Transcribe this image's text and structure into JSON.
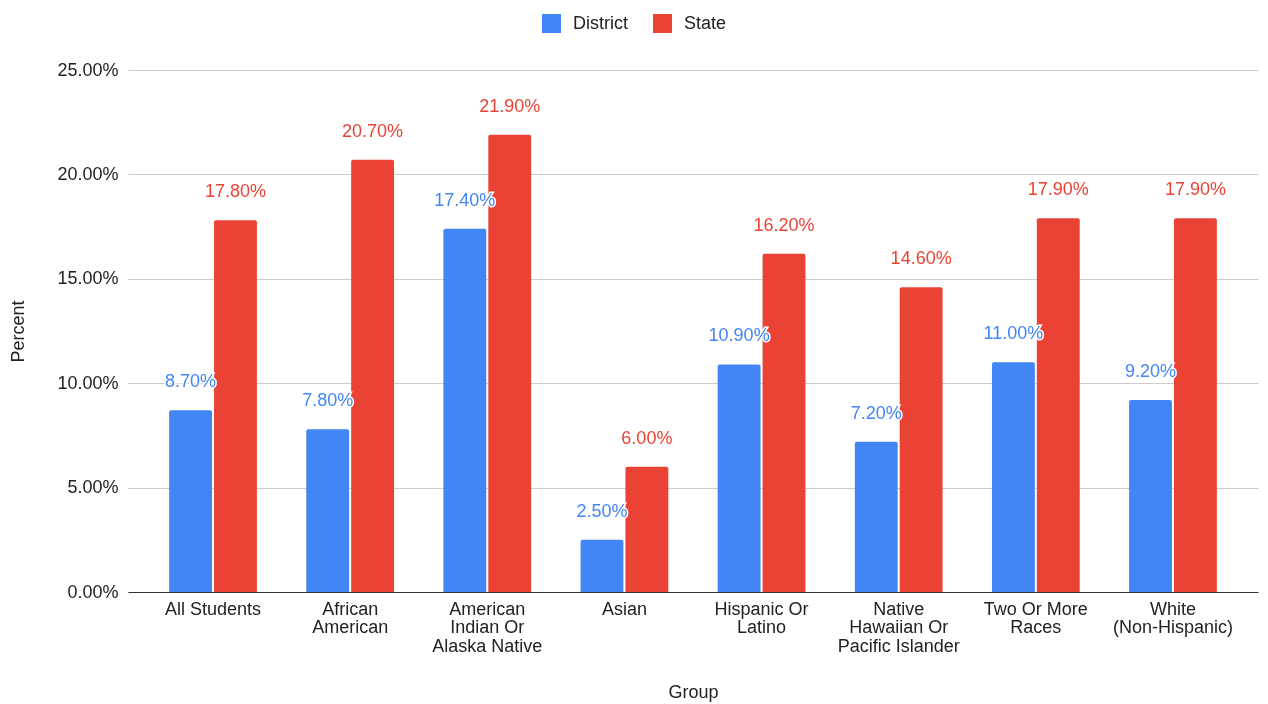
{
  "chart_data": {
    "type": "bar",
    "xlabel": "Group",
    "ylabel": "Percent",
    "categories": [
      "All Students",
      "African American",
      "American Indian Or Alaska Native",
      "Asian",
      "Hispanic Or Latino",
      "Native Hawaiian Or Pacific Islander",
      "Two Or More Races",
      "White (Non-Hispanic)"
    ],
    "series": [
      {
        "name": "District",
        "color": "#4285f4",
        "values": [
          8.7,
          7.8,
          17.4,
          2.5,
          10.9,
          7.2,
          11.0,
          9.2
        ],
        "value_labels": [
          "8.70%",
          "7.80%",
          "17.40%",
          "2.50%",
          "10.90%",
          "7.20%",
          "11.00%",
          "9.20%"
        ]
      },
      {
        "name": "State",
        "color": "#ea4335",
        "values": [
          17.8,
          20.7,
          21.9,
          6.0,
          16.2,
          14.6,
          17.9,
          17.9
        ],
        "value_labels": [
          "17.80%",
          "20.70%",
          "21.90%",
          "6.00%",
          "16.20%",
          "14.60%",
          "17.90%",
          "17.90%"
        ]
      }
    ],
    "ylim": [
      0,
      25
    ],
    "yticks": [
      {
        "value": 0,
        "label": "0.00%"
      },
      {
        "value": 5,
        "label": "5.00%"
      },
      {
        "value": 10,
        "label": "10.00%"
      },
      {
        "value": 15,
        "label": "15.00%"
      },
      {
        "value": 20,
        "label": "20.00%"
      },
      {
        "value": 25,
        "label": "25.00%"
      }
    ],
    "grid": "y",
    "legend": "top"
  }
}
